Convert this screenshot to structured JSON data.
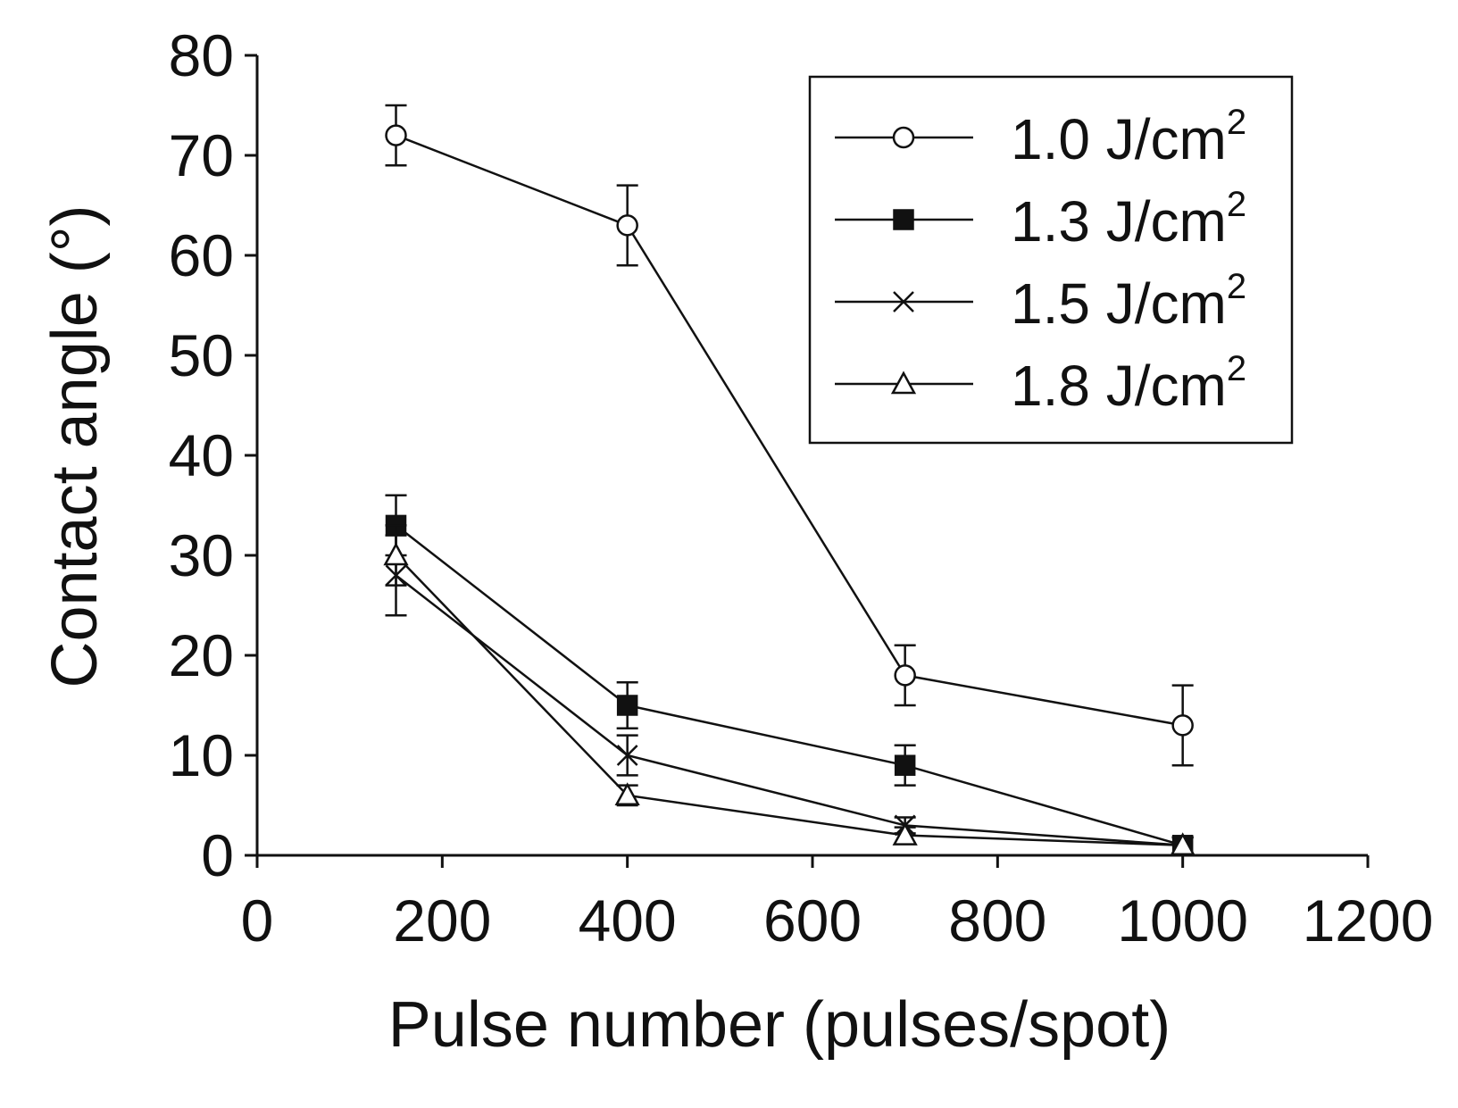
{
  "chart_data": {
    "type": "line",
    "title": "",
    "xlabel": "Pulse number (pulses/spot)",
    "ylabel": "Contact angle (°)",
    "xlim": [
      0,
      1200
    ],
    "ylim": [
      0,
      80
    ],
    "xticks": [
      0,
      200,
      400,
      600,
      800,
      1000,
      1200
    ],
    "yticks": [
      0,
      10,
      20,
      30,
      40,
      50,
      60,
      70,
      80
    ],
    "grid": false,
    "legend_position": "top-right",
    "series": [
      {
        "name": "1.0 J/cm",
        "superscript": "2",
        "marker": "open-circle",
        "x": [
          150,
          400,
          700,
          1000
        ],
        "y": [
          72,
          63,
          18,
          13
        ],
        "error": [
          3,
          4,
          3,
          4
        ]
      },
      {
        "name": "1.3 J/cm",
        "superscript": "2",
        "marker": "filled-square",
        "x": [
          150,
          400,
          700,
          1000
        ],
        "y": [
          33,
          15,
          9,
          1
        ],
        "error": [
          3,
          2.3,
          2,
          0.8
        ]
      },
      {
        "name": "1.5 J/cm",
        "superscript": "2",
        "marker": "x",
        "x": [
          150,
          400,
          700,
          1000
        ],
        "y": [
          28,
          10,
          3,
          1
        ],
        "error": [
          4,
          2,
          0.8,
          0.8
        ]
      },
      {
        "name": "1.8 J/cm",
        "superscript": "2",
        "marker": "open-triangle",
        "x": [
          150,
          400,
          700,
          1000
        ],
        "y": [
          30,
          6,
          2,
          1
        ],
        "error": [
          3,
          1,
          0.8,
          0.8
        ]
      }
    ]
  }
}
